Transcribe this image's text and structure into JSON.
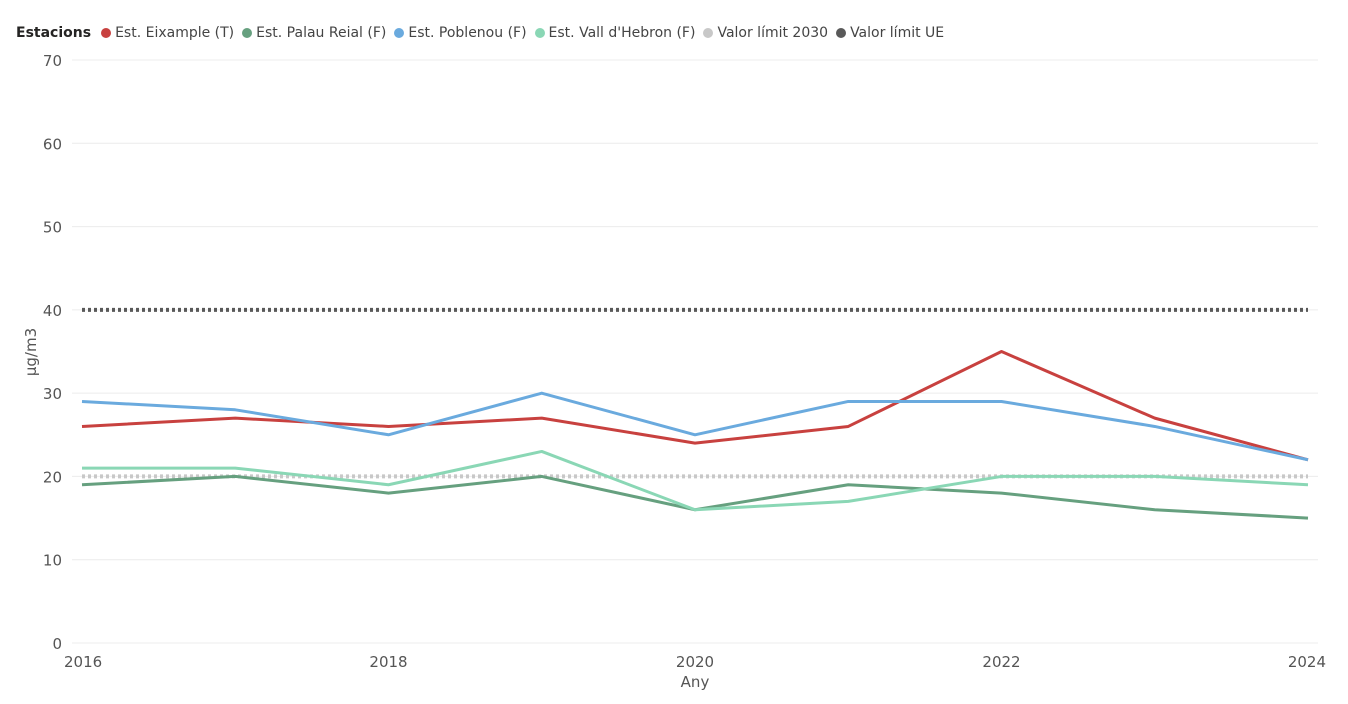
{
  "chart_data": {
    "type": "line",
    "legend_title": "Estacions",
    "legend_position": "top-left",
    "x": [
      2016,
      2017,
      2018,
      2019,
      2020,
      2021,
      2022,
      2023,
      2024
    ],
    "x_ticks": [
      2016,
      2018,
      2020,
      2022,
      2024
    ],
    "xlabel": "Any",
    "ylabel": "µg/m3",
    "ylim": [
      0,
      70
    ],
    "y_ticks": [
      0,
      10,
      20,
      30,
      40,
      50,
      60,
      70
    ],
    "grid": true,
    "series": [
      {
        "name": "Est. Eixample (T)",
        "color": "#c8413f",
        "dashed": false,
        "values": [
          26,
          27,
          26,
          27,
          24,
          26,
          35,
          27,
          22
        ]
      },
      {
        "name": "Est. Palau Reial (F)",
        "color": "#66a07f",
        "dashed": false,
        "values": [
          19,
          20,
          18,
          20,
          16,
          19,
          18,
          16,
          15
        ]
      },
      {
        "name": "Est. Poblenou (F)",
        "color": "#6aaade",
        "dashed": false,
        "values": [
          29,
          28,
          25,
          30,
          25,
          29,
          29,
          26,
          22
        ]
      },
      {
        "name": "Est. Vall d'Hebron (F)",
        "color": "#8ad7b5",
        "dashed": false,
        "values": [
          21,
          21,
          19,
          23,
          16,
          17,
          20,
          20,
          19
        ]
      },
      {
        "name": "Valor límit 2030",
        "color": "#c8c8c8",
        "dashed": true,
        "values": [
          20,
          20,
          20,
          20,
          20,
          20,
          20,
          20,
          20
        ]
      },
      {
        "name": "Valor límit UE",
        "color": "#595959",
        "dashed": true,
        "values": [
          40,
          40,
          40,
          40,
          40,
          40,
          40,
          40,
          40
        ]
      }
    ]
  }
}
